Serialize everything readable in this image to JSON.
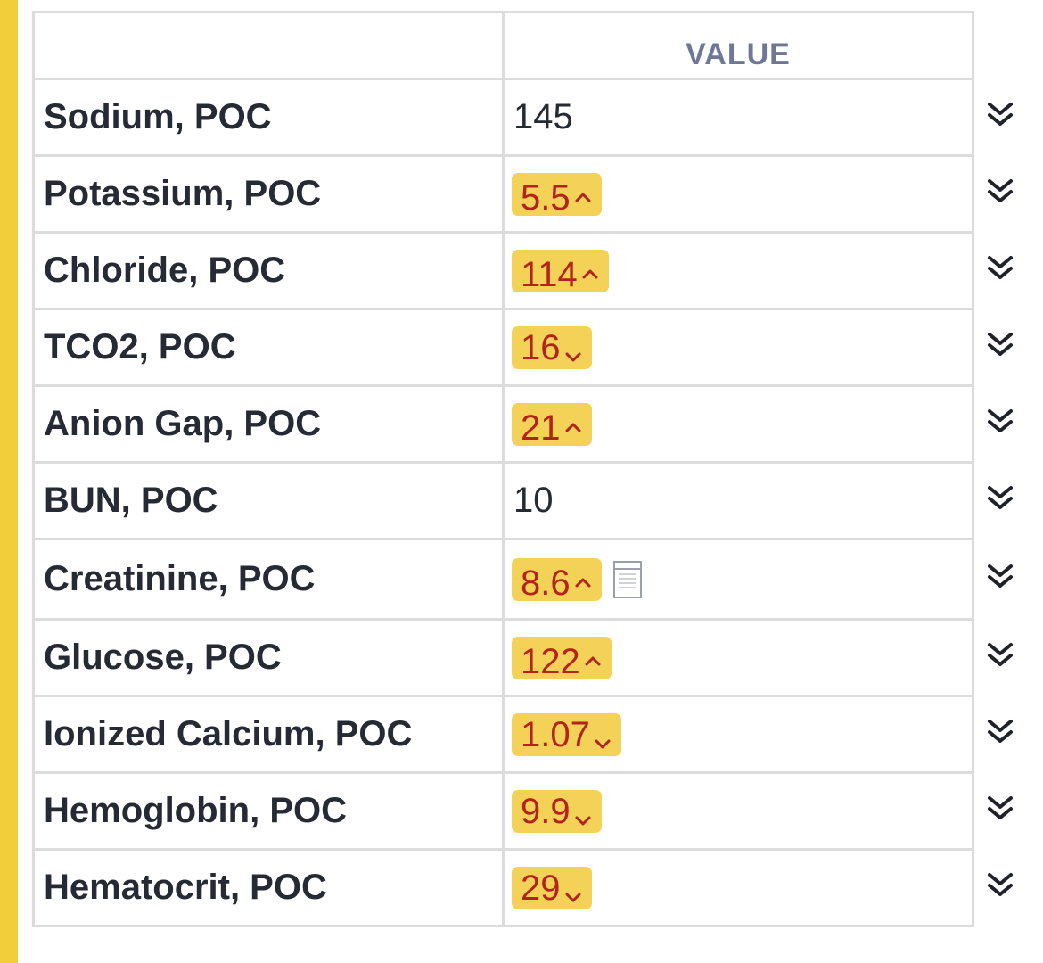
{
  "table": {
    "header_value": "VALUE",
    "rows": [
      {
        "name": "Sodium, POC",
        "value": "145",
        "flag": ""
      },
      {
        "name": "Potassium, POC",
        "value": "5.5",
        "flag": "high"
      },
      {
        "name": "Chloride, POC",
        "value": "114",
        "flag": "high"
      },
      {
        "name": "TCO2, POC",
        "value": "16",
        "flag": "low"
      },
      {
        "name": "Anion Gap, POC",
        "value": "21",
        "flag": "high"
      },
      {
        "name": "BUN, POC",
        "value": "10",
        "flag": ""
      },
      {
        "name": "Creatinine, POC",
        "value": "8.6",
        "flag": "high",
        "has_note": true
      },
      {
        "name": "Glucose, POC",
        "value": "122",
        "flag": "high"
      },
      {
        "name": "Ionized Calcium, POC",
        "value": "1.07",
        "flag": "low"
      },
      {
        "name": "Hemoglobin, POC",
        "value": "9.9",
        "flag": "low"
      },
      {
        "name": "Hematocrit, POC",
        "value": "29",
        "flag": "low"
      }
    ]
  },
  "icons": {
    "high": "caret-up-icon",
    "low": "caret-down-icon",
    "note": "note-icon",
    "expand": "double-chevron-down-icon"
  },
  "colors": {
    "accent_bar": "#f3ce3b",
    "badge_bg": "#f3d257",
    "badge_text": "#b4231a",
    "header_text": "#6f7796"
  }
}
